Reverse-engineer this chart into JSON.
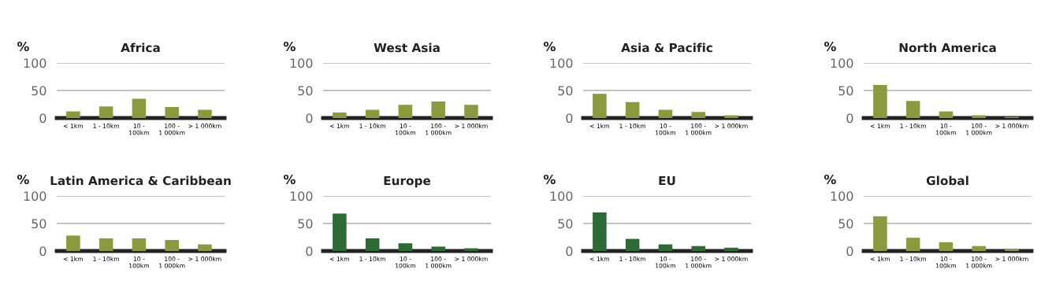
{
  "chart_data": [
    {
      "type": "bar",
      "title": "Africa",
      "ylabel": "%",
      "categories": [
        "< 1km",
        "1 - 10km",
        "10 -\n100km",
        "100 -\n1 000km",
        "> 1 000km"
      ],
      "values": [
        12,
        21,
        35,
        20,
        15
      ],
      "color": "#8a9a3c",
      "ylim": [
        0,
        100
      ],
      "yticks": [
        0,
        50,
        100
      ],
      "grid": "y"
    },
    {
      "type": "bar",
      "title": "West Asia",
      "ylabel": "%",
      "categories": [
        "< 1km",
        "1 - 10km",
        "10 -\n100km",
        "100 -\n1 000km",
        "> 1 000km"
      ],
      "values": [
        10,
        15,
        24,
        30,
        24
      ],
      "color": "#8a9a3c",
      "ylim": [
        0,
        100
      ],
      "yticks": [
        0,
        50,
        100
      ],
      "grid": "y"
    },
    {
      "type": "bar",
      "title": "Asia & Pacific",
      "ylabel": "%",
      "categories": [
        "< 1km",
        "1 - 10km",
        "10 -\n100km",
        "100 -\n1 000km",
        "> 1 000km"
      ],
      "values": [
        44,
        29,
        15,
        11,
        5
      ],
      "color": "#8a9a3c",
      "ylim": [
        0,
        100
      ],
      "yticks": [
        0,
        50,
        100
      ],
      "grid": "y"
    },
    {
      "type": "bar",
      "title": "North America",
      "ylabel": "%",
      "categories": [
        "< 1km",
        "1 - 10km",
        "10 -\n100km",
        "100 -\n1 000km",
        "> 1 000km"
      ],
      "values": [
        60,
        31,
        12,
        5,
        2
      ],
      "color": "#8a9a3c",
      "ylim": [
        0,
        100
      ],
      "yticks": [
        0,
        50,
        100
      ],
      "grid": "y"
    },
    {
      "type": "bar",
      "title": "Latin America & Caribbean",
      "ylabel": "%",
      "categories": [
        "< 1km",
        "1 - 10km",
        "10 -\n100km",
        "100 -\n1 000km",
        "> 1 000km"
      ],
      "values": [
        28,
        23,
        23,
        20,
        12
      ],
      "color": "#8a9a3c",
      "ylim": [
        0,
        100
      ],
      "yticks": [
        0,
        50,
        100
      ],
      "grid": "y"
    },
    {
      "type": "bar",
      "title": "Europe",
      "ylabel": "%",
      "categories": [
        "< 1km",
        "1 - 10km",
        "10 -\n100km",
        "100 -\n1 000km",
        "> 1 000km"
      ],
      "values": [
        68,
        23,
        14,
        8,
        5
      ],
      "color": "#2d6a35",
      "ylim": [
        0,
        100
      ],
      "yticks": [
        0,
        50,
        100
      ],
      "grid": "y"
    },
    {
      "type": "bar",
      "title": "EU",
      "ylabel": "%",
      "categories": [
        "< 1km",
        "1 - 10km",
        "10 -\n100km",
        "100 -\n1 000km",
        "> 1 000km"
      ],
      "values": [
        70,
        22,
        12,
        9,
        6
      ],
      "color": "#2d6a35",
      "ylim": [
        0,
        100
      ],
      "yticks": [
        0,
        50,
        100
      ],
      "grid": "y"
    },
    {
      "type": "bar",
      "title": "Global",
      "ylabel": "%",
      "categories": [
        "< 1km",
        "1 - 10km",
        "10 -\n100km",
        "100 -\n1 000km",
        "> 1 000km"
      ],
      "values": [
        63,
        24,
        16,
        9,
        3
      ],
      "color": "#8a9a3c",
      "ylim": [
        0,
        100
      ],
      "yticks": [
        0,
        50,
        100
      ],
      "grid": "y"
    }
  ]
}
